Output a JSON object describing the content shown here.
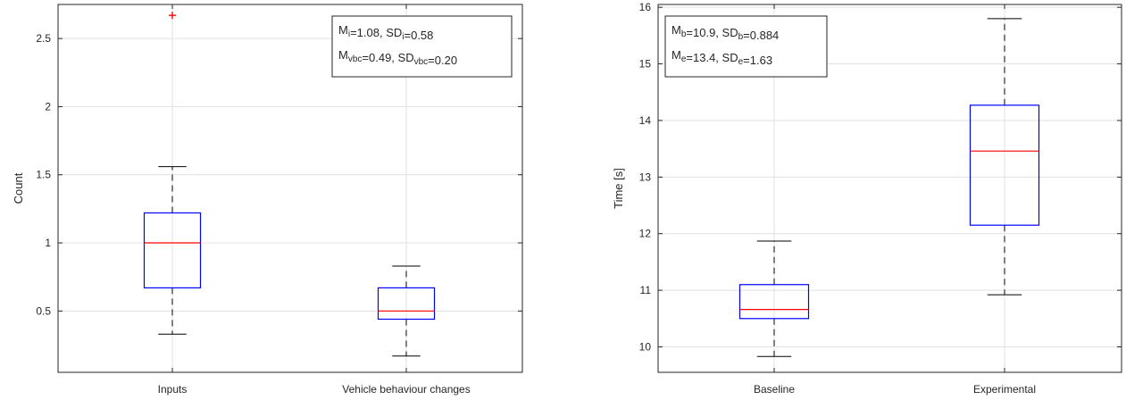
{
  "chart_data": [
    {
      "type": "box",
      "title": "",
      "xlabel": "",
      "ylabel": "Count",
      "ylim": [
        0.05,
        2.75
      ],
      "yticks": [
        0.5,
        1,
        1.5,
        2,
        2.5
      ],
      "ytick_labels": [
        "0.5",
        "1",
        "1.5",
        "2",
        "2.5"
      ],
      "grid": true,
      "categories": [
        "Inputs",
        "Vehicle behaviour changes"
      ],
      "boxes": [
        {
          "category": "Inputs",
          "whisker_low": 0.33,
          "q1": 0.67,
          "median": 1.0,
          "q3": 1.22,
          "whisker_high": 1.56,
          "outliers": [
            2.67
          ]
        },
        {
          "category": "Vehicle behaviour changes",
          "whisker_low": 0.17,
          "q1": 0.44,
          "median": 0.5,
          "q3": 0.67,
          "whisker_high": 0.83,
          "outliers": []
        }
      ],
      "annotation": {
        "position": "top-right",
        "lines": [
          [
            {
              "t": "M"
            },
            {
              "t": "i",
              "sub": true
            },
            {
              "t": "=1.08, SD"
            },
            {
              "t": "i",
              "sub": true
            },
            {
              "t": "=0.58"
            }
          ],
          [
            {
              "t": "M"
            },
            {
              "t": "vbc",
              "sub": true
            },
            {
              "t": "=0.49, SD"
            },
            {
              "t": "vbc",
              "sub": true
            },
            {
              "t": "=0.20"
            }
          ]
        ]
      }
    },
    {
      "type": "box",
      "title": "",
      "xlabel": "",
      "ylabel": "Time [s]",
      "ylim": [
        9.55,
        16.05
      ],
      "yticks": [
        10,
        11,
        12,
        13,
        14,
        15,
        16
      ],
      "ytick_labels": [
        "10",
        "11",
        "12",
        "13",
        "14",
        "15",
        "16"
      ],
      "grid": true,
      "categories": [
        "Baseline",
        "Experimental"
      ],
      "boxes": [
        {
          "category": "Baseline",
          "whisker_low": 9.83,
          "q1": 10.5,
          "median": 10.66,
          "q3": 11.1,
          "whisker_high": 11.87,
          "outliers": []
        },
        {
          "category": "Experimental",
          "whisker_low": 10.92,
          "q1": 12.15,
          "median": 13.46,
          "q3": 14.27,
          "whisker_high": 15.8,
          "outliers": []
        }
      ],
      "annotation": {
        "position": "top-left",
        "lines": [
          [
            {
              "t": "M"
            },
            {
              "t": "b",
              "sub": true
            },
            {
              "t": "=10.9, SD"
            },
            {
              "t": "b",
              "sub": true
            },
            {
              "t": "=0.884"
            }
          ],
          [
            {
              "t": "M"
            },
            {
              "t": "e",
              "sub": true
            },
            {
              "t": "=13.4, SD"
            },
            {
              "t": "e",
              "sub": true
            },
            {
              "t": "=1.63"
            }
          ]
        ]
      }
    }
  ],
  "colors": {
    "box": "#0000ff",
    "median": "#ff0000",
    "whisker": "#000000",
    "outlier": "#ff0000",
    "grid": "#e1e1e1",
    "axis": "#262626"
  }
}
